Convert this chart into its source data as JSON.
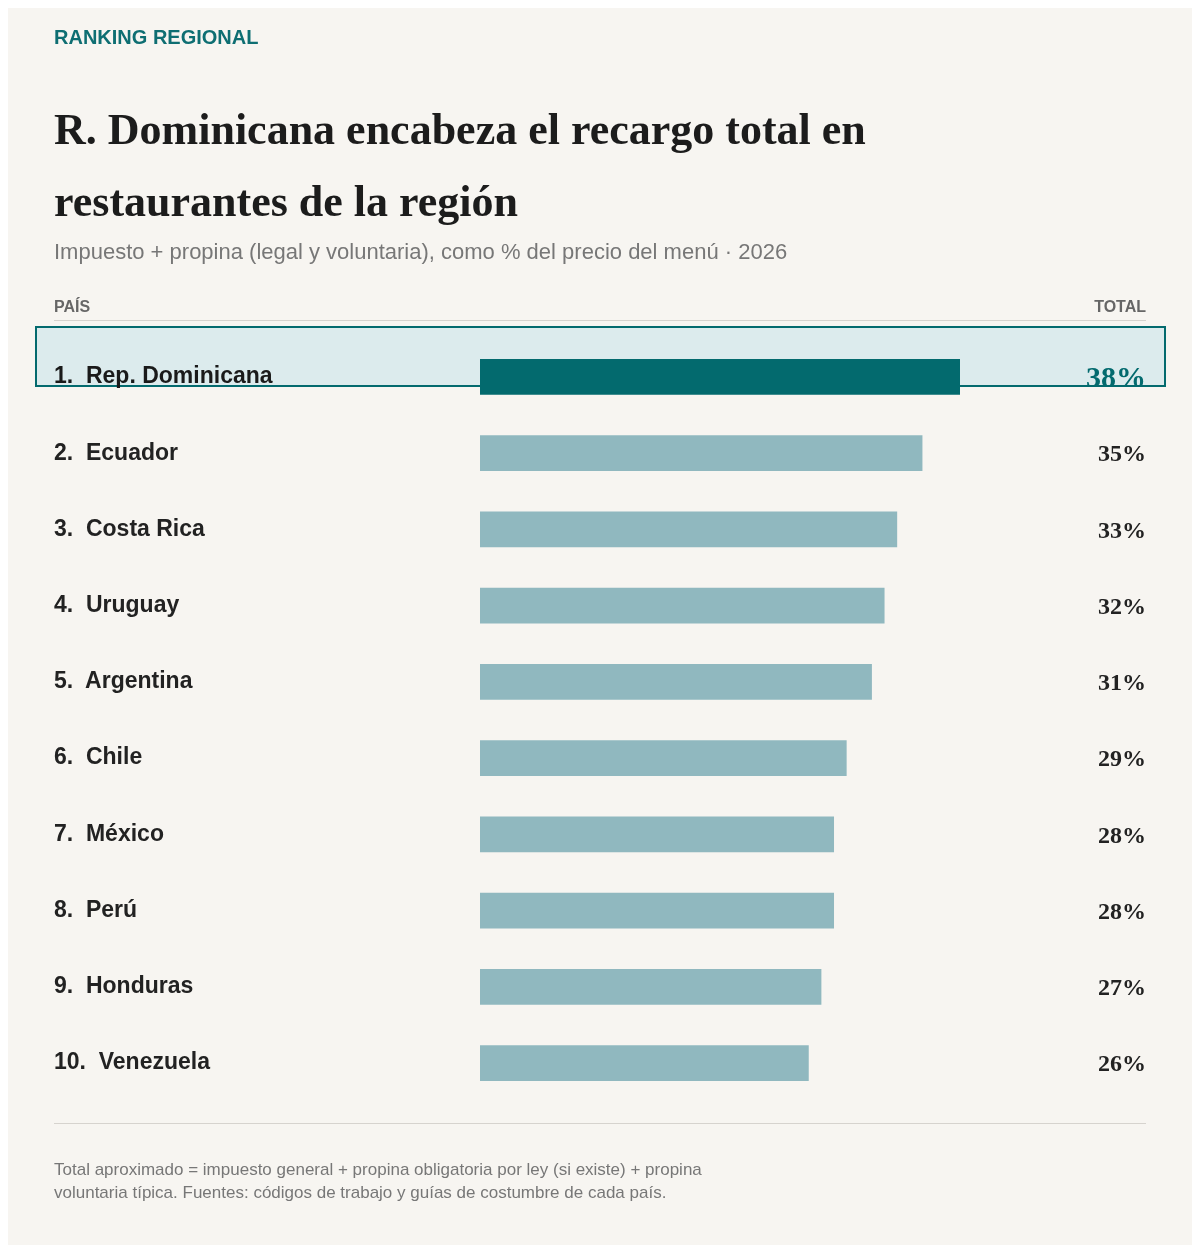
{
  "chart_data": {
    "type": "bar",
    "orientation": "horizontal",
    "title": "R. Dominicana encabeza el recargo total en restaurantes de la región",
    "subtitle": "Impuesto + propina (legal y voluntaria), como % del precio del menú · 2026",
    "ylabel": "PAÍS",
    "annotations": [
      "RANKING REGIONAL",
      "TOTAL",
      "Total aproximado = impuesto general + propina obligatoria por ley (si existe) + propina voluntaria típica. Fuentes: códigos de trabajo y guías de costumbre de cada país."
    ],
    "categories": [
      "1.  Rep. Dominicana",
      "2.  Ecuador",
      "3.  Costa Rica",
      "4.  Uruguay",
      "5.  Argentina",
      "6.  Chile",
      "7.  México",
      "8.  Perú",
      "9.  Honduras",
      "10.  Venezuela"
    ],
    "values": [
      38,
      35,
      33,
      32,
      31,
      29,
      28,
      28,
      27,
      26
    ],
    "value_labels": [
      "38%",
      "35%",
      "33%",
      "32%",
      "31%",
      "29%",
      "28%",
      "28%",
      "27%",
      "26%"
    ],
    "colors": [
      "#036a6e",
      "#90b8bf",
      "#90b8bf",
      "#90b8bf",
      "#90b8bf",
      "#90b8bf",
      "#90b8bf",
      "#90b8bf",
      "#90b8bf",
      "#90b8bf"
    ],
    "grid": false,
    "legend": false
  }
}
